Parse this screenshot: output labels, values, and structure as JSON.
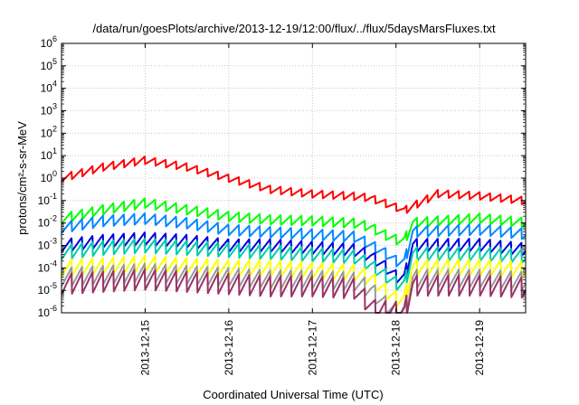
{
  "chart_data": {
    "type": "line",
    "title": "/data/run/goesPlots/archive/2013-12-19/12:00/flux/../flux/5daysMarsFluxes.txt",
    "xlabel": "Coordinated Universal Time (UTC)",
    "ylabel": "protons/cm²-s-sr-MeV",
    "yscale": "log",
    "ylim": [
      1e-06,
      1000000.0
    ],
    "xlim": [
      14.0,
      19.55
    ],
    "x_unit": "day of December 2013",
    "x_ticks": [
      15,
      16,
      17,
      18,
      19
    ],
    "x_tick_labels": [
      "2013-12-15",
      "2013-12-16",
      "2013-12-17",
      "2013-12-18",
      "2013-12-19"
    ],
    "y_ticks": [
      -6,
      -5,
      -4,
      -3,
      -2,
      -1,
      0,
      1,
      2,
      3,
      4,
      5,
      6
    ],
    "y_tick_labels": [
      {
        "base": "10",
        "exp": "-6"
      },
      {
        "base": "10",
        "exp": "-5"
      },
      {
        "base": "10",
        "exp": "-4"
      },
      {
        "base": "10",
        "exp": "-3"
      },
      {
        "base": "10",
        "exp": "-2"
      },
      {
        "base": "10",
        "exp": "-1"
      },
      {
        "base": "10",
        "exp": "0"
      },
      {
        "base": "10",
        "exp": "1"
      },
      {
        "base": "10",
        "exp": "2"
      },
      {
        "base": "10",
        "exp": "3"
      },
      {
        "base": "10",
        "exp": "4"
      },
      {
        "base": "10",
        "exp": "5"
      },
      {
        "base": "10",
        "exp": "6"
      }
    ],
    "grid": true,
    "legend": "none",
    "sawtooth_period_days": 0.125,
    "series": [
      {
        "color": "#ff0000",
        "amplitude_decades": 0.35,
        "base_x": [
          14.0,
          14.5,
          15.0,
          15.5,
          16.0,
          16.5,
          17.0,
          17.5,
          17.7,
          18.0,
          18.1,
          18.5,
          19.0,
          19.5,
          19.55
        ],
        "base_log10_y": [
          0.0,
          0.5,
          0.8,
          0.5,
          0.0,
          -0.5,
          -0.7,
          -0.8,
          -0.9,
          -1.3,
          -1.45,
          -0.7,
          -0.8,
          -1.0,
          -1.05
        ]
      },
      {
        "color": "#00ff00",
        "amplitude_decades": 0.45,
        "base_x": [
          14.0,
          14.5,
          15.0,
          15.5,
          16.0,
          16.5,
          17.0,
          17.5,
          17.7,
          17.85,
          18.0,
          18.1,
          18.2,
          19.0,
          19.55
        ],
        "base_log10_y": [
          -1.8,
          -1.4,
          -1.1,
          -1.4,
          -1.7,
          -1.85,
          -1.9,
          -2.0,
          -2.2,
          -2.5,
          -2.75,
          -2.8,
          -2.0,
          -1.8,
          -2.0
        ]
      },
      {
        "color": "#0088ff",
        "amplitude_decades": 0.5,
        "base_x": [
          14.0,
          14.5,
          15.0,
          15.5,
          16.0,
          16.5,
          17.0,
          17.5,
          17.7,
          17.85,
          18.0,
          18.1,
          18.2,
          19.0,
          19.55
        ],
        "base_log10_y": [
          -2.2,
          -1.9,
          -1.8,
          -2.0,
          -2.3,
          -2.4,
          -2.5,
          -2.6,
          -3.0,
          -3.3,
          -3.7,
          -3.75,
          -2.4,
          -2.3,
          -2.5
        ]
      },
      {
        "color": "#0000dd",
        "amplitude_decades": 0.6,
        "base_x": [
          14.0,
          14.5,
          15.0,
          15.5,
          16.0,
          16.5,
          17.0,
          17.5,
          17.7,
          17.85,
          18.0,
          18.1,
          18.2,
          19.0,
          19.55
        ],
        "base_log10_y": [
          -3.0,
          -2.8,
          -2.7,
          -2.8,
          -3.0,
          -3.0,
          -3.1,
          -3.2,
          -3.5,
          -3.9,
          -4.4,
          -4.45,
          -3.0,
          -3.0,
          -3.2
        ]
      },
      {
        "color": "#00ccaa",
        "amplitude_decades": 0.65,
        "base_x": [
          14.0,
          14.5,
          15.0,
          15.5,
          16.0,
          16.5,
          17.0,
          17.5,
          17.7,
          17.85,
          18.0,
          18.1,
          18.2,
          19.0,
          19.55
        ],
        "base_log10_y": [
          -3.3,
          -3.1,
          -3.0,
          -3.1,
          -3.2,
          -3.3,
          -3.4,
          -3.5,
          -3.9,
          -4.3,
          -4.7,
          -4.75,
          -3.4,
          -3.4,
          -3.5
        ]
      },
      {
        "color": "#ffff00",
        "amplitude_decades": 0.75,
        "base_x": [
          14.0,
          14.5,
          15.0,
          15.5,
          16.0,
          16.5,
          17.0,
          17.5,
          17.7,
          17.85,
          18.0,
          18.1,
          18.2,
          19.0,
          19.55
        ],
        "base_log10_y": [
          -4.0,
          -3.9,
          -3.8,
          -3.9,
          -4.0,
          -4.0,
          -4.1,
          -4.2,
          -4.5,
          -5.0,
          -5.4,
          -5.45,
          -4.0,
          -4.0,
          -4.1
        ]
      },
      {
        "color": "#999999",
        "amplitude_decades": 0.85,
        "base_x": [
          14.0,
          14.5,
          15.0,
          15.5,
          16.0,
          16.5,
          17.0,
          17.5,
          17.7,
          17.85,
          18.0,
          18.1,
          18.2,
          19.0,
          19.55
        ],
        "base_log10_y": [
          -4.4,
          -4.3,
          -4.2,
          -4.3,
          -4.4,
          -4.5,
          -4.5,
          -4.6,
          -5.0,
          -5.6,
          -6.0,
          -6.05,
          -4.5,
          -4.5,
          -4.6
        ]
      },
      {
        "color": "#993366",
        "amplitude_decades": 0.95,
        "base_x": [
          14.0,
          14.5,
          15.0,
          15.5,
          16.0,
          16.5,
          17.0,
          17.5,
          17.6,
          17.75,
          17.9,
          18.1,
          18.2,
          19.0,
          19.55
        ],
        "base_log10_y": [
          -4.7,
          -4.6,
          -4.5,
          -4.6,
          -4.7,
          -4.8,
          -4.8,
          -4.9,
          -5.3,
          -5.9,
          -5.95,
          -6.0,
          -4.8,
          -4.8,
          -4.9
        ]
      }
    ]
  }
}
